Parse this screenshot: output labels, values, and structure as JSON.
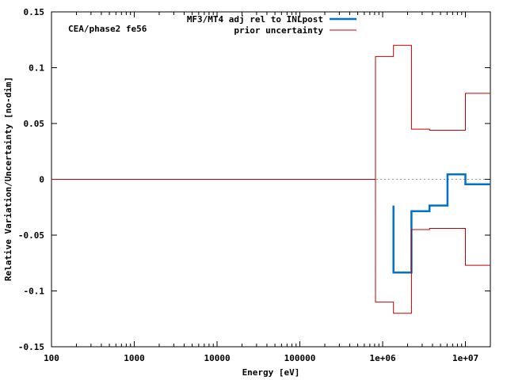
{
  "chart_data": {
    "type": "line",
    "annotation": "CEA/phase2 fe56",
    "xlabel": "Energy [eV]",
    "ylabel": "Relative Variation/Uncertainty [no-dim]",
    "xscale": "log",
    "xlim": [
      100,
      20000000
    ],
    "ylim": [
      -0.15,
      0.15
    ],
    "x_ticks": [
      {
        "value": 100,
        "label": "100"
      },
      {
        "value": 1000,
        "label": "1000"
      },
      {
        "value": 10000,
        "label": "10000"
      },
      {
        "value": 100000,
        "label": "100000"
      },
      {
        "value": 1000000,
        "label": "1e+06"
      },
      {
        "value": 10000000,
        "label": "1e+07"
      }
    ],
    "y_ticks": [
      {
        "value": 0.15,
        "label": "0.15"
      },
      {
        "value": 0.1,
        "label": "0.1"
      },
      {
        "value": 0.05,
        "label": "0.05"
      },
      {
        "value": 0,
        "label": "0"
      },
      {
        "value": -0.05,
        "label": "-0.05"
      },
      {
        "value": -0.1,
        "label": "-0.1"
      },
      {
        "value": -0.15,
        "label": "-0.15"
      }
    ],
    "legend_position": "top-right",
    "zero_line": "dotted",
    "series": [
      {
        "name": "MF3/MT4 adj rel to INLpost",
        "color": "#0072ce",
        "step": true,
        "points": [
          [
            1350000,
            -0.0235
          ],
          [
            1350000,
            -0.0835
          ],
          [
            2230000,
            -0.0835
          ],
          [
            2230000,
            -0.0285
          ],
          [
            3680000,
            -0.0285
          ],
          [
            3680000,
            -0.0235
          ],
          [
            6070000,
            -0.0235
          ],
          [
            6070000,
            0.0045
          ],
          [
            10000000,
            0.0045
          ],
          [
            10000000,
            -0.0045
          ],
          [
            20000000,
            -0.0045
          ]
        ]
      },
      {
        "name": "prior uncertainty",
        "color": "#c00000",
        "step": true,
        "points": [
          [
            100,
            0
          ],
          [
            820000,
            0
          ],
          [
            820000,
            0.11
          ],
          [
            1350000,
            0.11
          ],
          [
            1350000,
            0.12
          ],
          [
            2230000,
            0.12
          ],
          [
            2230000,
            0.045
          ],
          [
            3680000,
            0.045
          ],
          [
            3680000,
            0.044
          ],
          [
            10000000,
            0.044
          ],
          [
            10000000,
            0.077
          ],
          [
            20000000,
            0.077
          ]
        ]
      },
      {
        "name": "",
        "color": "#c00000",
        "step": true,
        "points": [
          [
            820000,
            0
          ],
          [
            820000,
            -0.11
          ],
          [
            1350000,
            -0.11
          ],
          [
            1350000,
            -0.12
          ],
          [
            2230000,
            -0.12
          ],
          [
            2230000,
            -0.045
          ],
          [
            3680000,
            -0.045
          ],
          [
            3680000,
            -0.044
          ],
          [
            10000000,
            -0.044
          ],
          [
            10000000,
            -0.077
          ],
          [
            20000000,
            -0.077
          ]
        ]
      }
    ]
  }
}
